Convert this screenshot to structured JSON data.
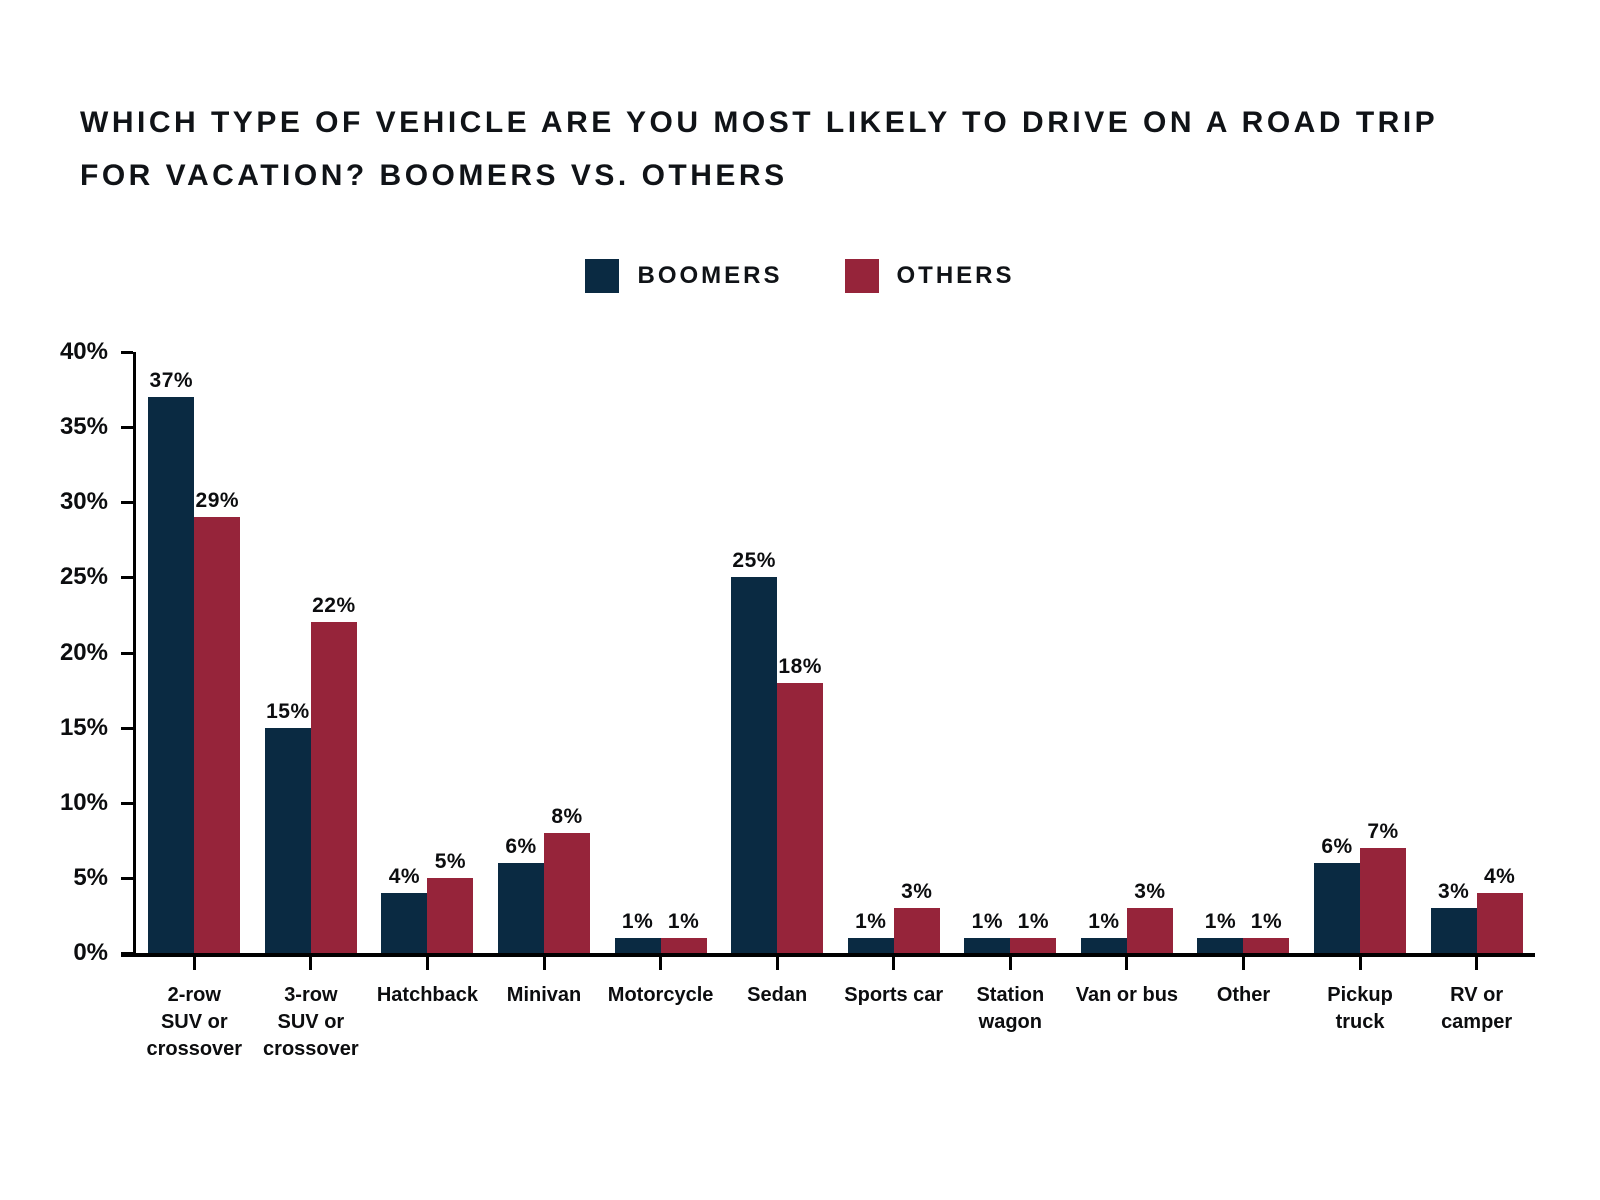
{
  "title_lines": [
    "WHICH TYPE OF VEHICLE ARE YOU MOST LIKELY TO DRIVE ON A ROAD TRIP",
    "FOR VACATION? BOOMERS VS. OTHERS"
  ],
  "legend": {
    "items": [
      {
        "label": "BOOMERS",
        "color": "#0a2a42"
      },
      {
        "label": "OTHERS",
        "color": "#96243a"
      }
    ]
  },
  "chart_data": {
    "type": "bar",
    "title": "Which type of vehicle are you most likely to drive on a road trip for vacation? Boomers vs. Others",
    "categories": [
      "2-row SUV or crossover",
      "3-row SUV or crossover",
      "Hatchback",
      "Minivan",
      "Motorcycle",
      "Sedan",
      "Sports car",
      "Station wagon",
      "Van or bus",
      "Other",
      "Pickup truck",
      "RV or camper"
    ],
    "category_display_labels": [
      "2-row\nSUV or\ncrossover",
      "3-row\nSUV or\ncrossover",
      "Hatchback",
      "Minivan",
      "Motorcycle",
      "Sedan",
      "Sports car",
      "Station\nwagon",
      "Van or bus",
      "Other",
      "Pickup\ntruck",
      "RV or\ncamper"
    ],
    "series": [
      {
        "name": "BOOMERS",
        "color": "#0a2a42",
        "values": [
          37,
          15,
          4,
          6,
          1,
          25,
          1,
          1,
          1,
          1,
          6,
          3
        ]
      },
      {
        "name": "OTHERS",
        "color": "#96243a",
        "values": [
          29,
          22,
          5,
          8,
          1,
          18,
          3,
          1,
          3,
          1,
          7,
          4
        ]
      }
    ],
    "value_label_format": "percent",
    "xlabel": "",
    "ylabel": "",
    "ylim": [
      0,
      40
    ],
    "ytick_labels": [
      "0%",
      "5%",
      "10%",
      "15%",
      "20%",
      "25%",
      "30%",
      "35%",
      "40%"
    ],
    "grid": false,
    "legend_position": "top-center"
  },
  "colors": {
    "background": "#ffffff",
    "axis": "#000000",
    "text": "#101317"
  }
}
